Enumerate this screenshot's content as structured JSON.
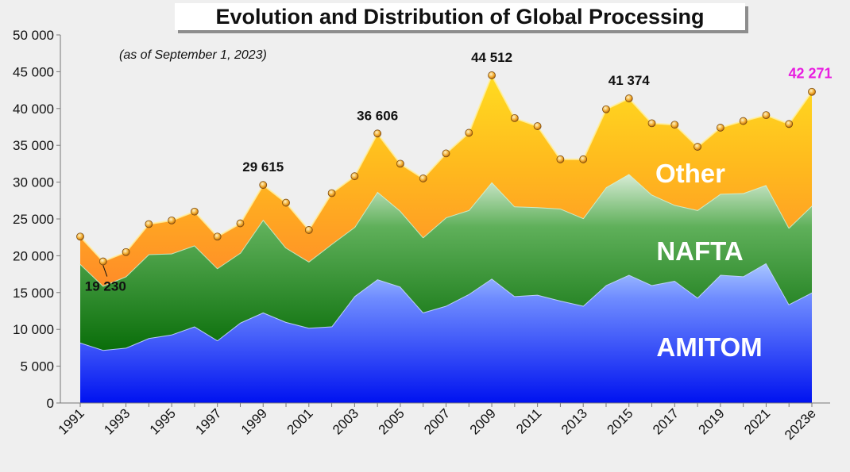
{
  "chart_data": {
    "type": "area",
    "title": "Evolution and Distribution of Global Processing",
    "subtitle": "(as of September 1, 2023)",
    "x": [
      "1991",
      "1992",
      "1993",
      "1994",
      "1995",
      "1996",
      "1997",
      "1998",
      "1999",
      "2000",
      "2001",
      "2002",
      "2003",
      "2004",
      "2005",
      "2006",
      "2007",
      "2008",
      "2009",
      "2010",
      "2011",
      "2012",
      "2013",
      "2014",
      "2015",
      "2016",
      "2017",
      "2018",
      "2019",
      "2020",
      "2021",
      "2022",
      "2023e"
    ],
    "x_tick_labels": [
      "1991",
      "1993",
      "1995",
      "1997",
      "1999",
      "2001",
      "2003",
      "2005",
      "2007",
      "2009",
      "2011",
      "2013",
      "2015",
      "2017",
      "2019",
      "2021",
      "2023e"
    ],
    "ylim": [
      0,
      50000
    ],
    "y_ticks": [
      0,
      5000,
      10000,
      15000,
      20000,
      25000,
      30000,
      35000,
      40000,
      45000,
      50000
    ],
    "y_tick_labels": [
      "0",
      "5 000",
      "10 000",
      "15 000",
      "20 000",
      "25 000",
      "30 000",
      "35 000",
      "40 000",
      "45 000",
      "50 000"
    ],
    "stacked": true,
    "grid": false,
    "series": [
      {
        "name": "AMITOM",
        "color": "#2a3cf0",
        "values": [
          8200,
          7200,
          7500,
          8800,
          9300,
          10400,
          8500,
          10900,
          12300,
          11000,
          10200,
          10400,
          14500,
          16800,
          15800,
          12300,
          13200,
          14800,
          16900,
          14500,
          14700,
          13900,
          13200,
          16000,
          17400,
          16000,
          16600,
          14300,
          17400,
          17200,
          19000,
          13400,
          15000
        ]
      },
      {
        "name": "NAFTA",
        "color": "#1a8a1a",
        "values": [
          10700,
          8700,
          9700,
          11400,
          11000,
          11000,
          9800,
          9500,
          12600,
          10100,
          9000,
          11200,
          9400,
          11900,
          10300,
          10200,
          12000,
          11400,
          13100,
          12200,
          11900,
          12500,
          11900,
          13300,
          13700,
          12300,
          10300,
          11900,
          11000,
          11300,
          10600,
          10400,
          11800
        ]
      },
      {
        "name": "Other",
        "color": "#ffa020",
        "values": [
          3700,
          3330,
          3300,
          4100,
          4500,
          4600,
          4300,
          4000,
          4715,
          6100,
          4300,
          6900,
          6900,
          7906,
          6400,
          8000,
          8700,
          10500,
          14512,
          12000,
          11000,
          6700,
          8000,
          10600,
          10274,
          9700,
          10900,
          8600,
          9000,
          9800,
          9500,
          14100,
          15471
        ]
      }
    ],
    "totals": [
      22600,
      19230,
      20500,
      24300,
      24800,
      26000,
      22600,
      24400,
      29615,
      27200,
      23500,
      28500,
      30800,
      36606,
      32500,
      30500,
      33900,
      36700,
      44512,
      38700,
      37600,
      33100,
      33100,
      39900,
      41374,
      38000,
      37800,
      34800,
      37400,
      38300,
      39100,
      37900,
      42271
    ],
    "point_labels": [
      {
        "x": "1992",
        "text": "19 230",
        "color": "#111111"
      },
      {
        "x": "1999",
        "text": "29 615",
        "color": "#111111"
      },
      {
        "x": "2004",
        "text": "36 606",
        "color": "#111111"
      },
      {
        "x": "2009",
        "text": "44 512",
        "color": "#111111"
      },
      {
        "x": "2015",
        "text": "41 374",
        "color": "#111111"
      },
      {
        "x": "2023e",
        "text": "42 271",
        "color": "#e81ce0"
      }
    ],
    "series_labels": [
      "Other",
      "NAFTA",
      "AMITOM"
    ]
  }
}
